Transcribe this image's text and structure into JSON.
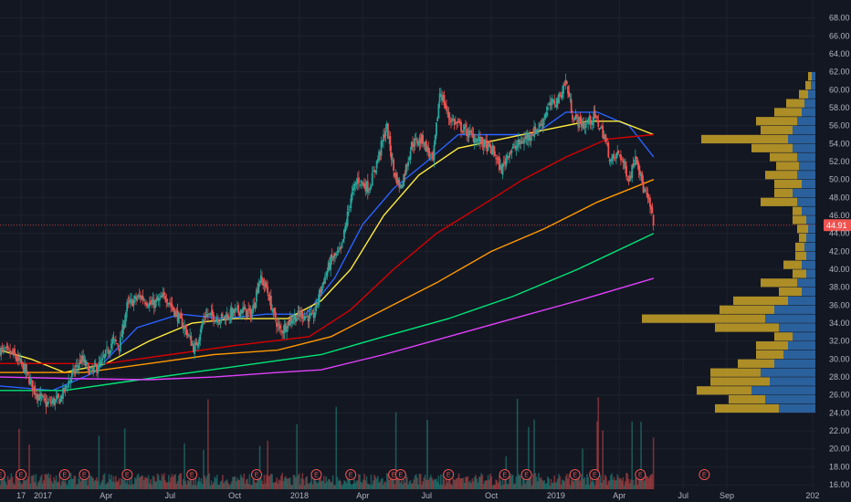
{
  "chart_data": {
    "type": "candlestick",
    "theme": {
      "background": "#131722",
      "grid": "#1e222d",
      "axis_text": "#b2b5be",
      "up": "#26a69a",
      "down": "#ef5350",
      "price_line": "#ef5350"
    },
    "y_axis": {
      "min": 15.5,
      "max": 70,
      "ticks": [
        "16.00",
        "18.00",
        "20.00",
        "22.00",
        "24.00",
        "26.00",
        "28.00",
        "30.00",
        "32.00",
        "34.00",
        "36.00",
        "38.00",
        "40.00",
        "42.00",
        "44.00",
        "46.00",
        "48.00",
        "50.00",
        "52.00",
        "54.00",
        "56.00",
        "58.00",
        "60.00",
        "62.00",
        "64.00",
        "66.00",
        "68.00"
      ]
    },
    "x_axis": {
      "start": "2016-11-01",
      "end": "2020-01-05",
      "ticks": [
        {
          "date": "2016-12-01",
          "label": "17"
        },
        {
          "date": "2017-01-01",
          "label": "2017"
        },
        {
          "date": "2017-04-01",
          "label": "Apr"
        },
        {
          "date": "2017-07-01",
          "label": "Jul"
        },
        {
          "date": "2017-10-01",
          "label": "Oct"
        },
        {
          "date": "2018-01-01",
          "label": "2018"
        },
        {
          "date": "2018-04-01",
          "label": "Apr"
        },
        {
          "date": "2018-07-01",
          "label": "Jul"
        },
        {
          "date": "2018-10-01",
          "label": "Oct"
        },
        {
          "date": "2019-01-01",
          "label": "2019"
        },
        {
          "date": "2019-04-01",
          "label": "Apr"
        },
        {
          "date": "2019-07-01",
          "label": "Jul"
        },
        {
          "date": "2019-09-01",
          "label": "Sep"
        },
        {
          "date": "2020-01-01",
          "label": "202"
        }
      ]
    },
    "last_price": {
      "value": 44.91,
      "label": "44.91"
    },
    "price_path": [
      [
        "2016-11-01",
        31
      ],
      [
        "2016-11-20",
        30.5
      ],
      [
        "2016-12-05",
        29
      ],
      [
        "2016-12-20",
        26.5
      ],
      [
        "2017-01-05",
        25
      ],
      [
        "2017-01-25",
        25.5
      ],
      [
        "2017-02-10",
        28
      ],
      [
        "2017-02-25",
        30
      ],
      [
        "2017-03-10",
        28.5
      ],
      [
        "2017-03-25",
        29.5
      ],
      [
        "2017-04-10",
        32
      ],
      [
        "2017-04-20",
        31.5
      ],
      [
        "2017-05-01",
        36
      ],
      [
        "2017-05-20",
        37
      ],
      [
        "2017-06-05",
        36
      ],
      [
        "2017-06-25",
        37
      ],
      [
        "2017-07-10",
        35
      ],
      [
        "2017-07-25",
        33
      ],
      [
        "2017-08-05",
        31
      ],
      [
        "2017-08-20",
        35
      ],
      [
        "2017-09-10",
        34.5
      ],
      [
        "2017-09-25",
        35
      ],
      [
        "2017-10-10",
        35.5
      ],
      [
        "2017-10-25",
        35
      ],
      [
        "2017-11-05",
        39
      ],
      [
        "2017-11-15",
        38
      ],
      [
        "2017-11-25",
        35
      ],
      [
        "2017-12-05",
        33
      ],
      [
        "2017-12-20",
        34.5
      ],
      [
        "2018-01-05",
        35
      ],
      [
        "2018-01-20",
        34.5
      ],
      [
        "2018-02-01",
        38
      ],
      [
        "2018-02-15",
        41
      ],
      [
        "2018-03-01",
        42
      ],
      [
        "2018-03-15",
        48
      ],
      [
        "2018-03-25",
        50
      ],
      [
        "2018-04-10",
        49
      ],
      [
        "2018-04-25",
        53
      ],
      [
        "2018-05-05",
        56
      ],
      [
        "2018-05-15",
        51
      ],
      [
        "2018-05-25",
        49
      ],
      [
        "2018-06-10",
        54
      ],
      [
        "2018-06-25",
        54.5
      ],
      [
        "2018-07-10",
        52
      ],
      [
        "2018-07-20",
        60
      ],
      [
        "2018-08-01",
        57
      ],
      [
        "2018-08-15",
        56
      ],
      [
        "2018-09-01",
        55
      ],
      [
        "2018-09-20",
        54
      ],
      [
        "2018-10-05",
        53
      ],
      [
        "2018-10-15",
        51
      ],
      [
        "2018-10-25",
        53
      ],
      [
        "2018-11-10",
        54
      ],
      [
        "2018-11-25",
        55
      ],
      [
        "2018-12-10",
        56
      ],
      [
        "2018-12-20",
        58
      ],
      [
        "2019-01-05",
        59
      ],
      [
        "2019-01-15",
        61
      ],
      [
        "2019-01-25",
        57
      ],
      [
        "2019-02-10",
        56
      ],
      [
        "2019-02-25",
        57
      ],
      [
        "2019-03-10",
        55
      ],
      [
        "2019-03-20",
        52
      ],
      [
        "2019-04-01",
        53
      ],
      [
        "2019-04-15",
        50
      ],
      [
        "2019-04-25",
        53
      ],
      [
        "2019-05-05",
        49
      ],
      [
        "2019-05-15",
        47
      ],
      [
        "2019-05-20",
        44.91
      ]
    ],
    "moving_averages": [
      {
        "color": "#2962ff",
        "points": [
          [
            "2016-11-01",
            27
          ],
          [
            "2017-01-15",
            26.5
          ],
          [
            "2017-03-15",
            28.5
          ],
          [
            "2017-05-15",
            33.5
          ],
          [
            "2017-07-15",
            35
          ],
          [
            "2017-09-15",
            34.5
          ],
          [
            "2017-11-15",
            35
          ],
          [
            "2018-01-10",
            35
          ],
          [
            "2018-02-20",
            39
          ],
          [
            "2018-04-01",
            45
          ],
          [
            "2018-05-15",
            49
          ],
          [
            "2018-07-01",
            52
          ],
          [
            "2018-08-15",
            55
          ],
          [
            "2018-10-01",
            55
          ],
          [
            "2018-12-01",
            55
          ],
          [
            "2019-01-15",
            57.5
          ],
          [
            "2019-03-01",
            57.5
          ],
          [
            "2019-04-15",
            56
          ],
          [
            "2019-05-20",
            52.5
          ]
        ]
      },
      {
        "color": "#ffeb3b",
        "points": [
          [
            "2016-11-01",
            31
          ],
          [
            "2016-12-15",
            30
          ],
          [
            "2017-02-01",
            28.5
          ],
          [
            "2017-04-01",
            29.5
          ],
          [
            "2017-06-01",
            32
          ],
          [
            "2017-08-01",
            34
          ],
          [
            "2017-10-01",
            34.5
          ],
          [
            "2017-12-15",
            34.5
          ],
          [
            "2018-02-01",
            36.5
          ],
          [
            "2018-03-15",
            40
          ],
          [
            "2018-05-01",
            46
          ],
          [
            "2018-06-20",
            50.5
          ],
          [
            "2018-08-15",
            53.5
          ],
          [
            "2018-10-15",
            54.5
          ],
          [
            "2018-12-15",
            55.5
          ],
          [
            "2019-02-15",
            56.5
          ],
          [
            "2019-04-01",
            56.5
          ],
          [
            "2019-05-20",
            55
          ]
        ]
      },
      {
        "color": "#d50000",
        "points": [
          [
            "2016-11-01",
            29.5
          ],
          [
            "2017-01-15",
            29.5
          ],
          [
            "2017-04-01",
            29.5
          ],
          [
            "2017-07-01",
            30.5
          ],
          [
            "2017-10-01",
            31.5
          ],
          [
            "2018-01-15",
            32.5
          ],
          [
            "2018-03-15",
            35.5
          ],
          [
            "2018-05-15",
            40
          ],
          [
            "2018-07-15",
            44
          ],
          [
            "2018-09-15",
            47
          ],
          [
            "2018-11-15",
            50
          ],
          [
            "2019-01-15",
            52.5
          ],
          [
            "2019-03-15",
            54.5
          ],
          [
            "2019-05-20",
            55
          ]
        ]
      },
      {
        "color": "#ff9800",
        "points": [
          [
            "2016-11-01",
            28.5
          ],
          [
            "2017-03-01",
            28.5
          ],
          [
            "2017-06-01",
            29.5
          ],
          [
            "2017-09-01",
            30.5
          ],
          [
            "2017-12-01",
            31
          ],
          [
            "2018-02-15",
            32.5
          ],
          [
            "2018-05-01",
            35.5
          ],
          [
            "2018-07-15",
            38.5
          ],
          [
            "2018-10-01",
            42
          ],
          [
            "2018-12-15",
            44.5
          ],
          [
            "2019-03-01",
            47.5
          ],
          [
            "2019-05-20",
            50
          ]
        ]
      },
      {
        "color": "#00e676",
        "points": [
          [
            "2016-11-01",
            26.5
          ],
          [
            "2017-02-01",
            26.5
          ],
          [
            "2017-05-01",
            27.5
          ],
          [
            "2017-08-01",
            28.5
          ],
          [
            "2017-11-01",
            29.5
          ],
          [
            "2018-02-01",
            30.5
          ],
          [
            "2018-05-01",
            32.5
          ],
          [
            "2018-08-01",
            34.5
          ],
          [
            "2018-11-01",
            37
          ],
          [
            "2019-02-01",
            40
          ],
          [
            "2019-05-20",
            44
          ]
        ]
      },
      {
        "color": "#e040fb",
        "points": [
          [
            "2016-11-01",
            28
          ],
          [
            "2017-03-01",
            27.8
          ],
          [
            "2017-06-01",
            27.7
          ],
          [
            "2017-09-01",
            28
          ],
          [
            "2017-12-01",
            28.5
          ],
          [
            "2018-02-01",
            28.8
          ],
          [
            "2018-05-01",
            30.5
          ],
          [
            "2018-08-01",
            32.5
          ],
          [
            "2018-11-01",
            34.5
          ],
          [
            "2019-02-01",
            36.5
          ],
          [
            "2019-05-20",
            39
          ]
        ]
      }
    ],
    "earnings_dates": [
      "2016-11-01",
      "2016-12-01",
      "2017-02-01",
      "2017-03-01",
      "2017-05-01",
      "2017-08-01",
      "2017-11-01",
      "2018-01-25",
      "2018-03-15",
      "2018-05-15",
      "2018-05-25",
      "2018-08-01",
      "2018-10-20",
      "2018-11-20",
      "2019-01-28",
      "2019-02-25",
      "2019-05-01",
      "2019-07-31"
    ],
    "earnings_label": "E",
    "volume_profile": {
      "up_color": "#2f6fb3",
      "down_color": "#c9a227",
      "rows": [
        {
          "price": 24.5,
          "up": 40,
          "down": 70
        },
        {
          "price": 25.5,
          "up": 55,
          "down": 40
        },
        {
          "price": 26.5,
          "up": 70,
          "down": 60
        },
        {
          "price": 27.5,
          "up": 50,
          "down": 65
        },
        {
          "price": 28.5,
          "up": 60,
          "down": 55
        },
        {
          "price": 29.5,
          "up": 45,
          "down": 40
        },
        {
          "price": 30.5,
          "up": 35,
          "down": 30
        },
        {
          "price": 31.5,
          "up": 30,
          "down": 35
        },
        {
          "price": 32.5,
          "up": 25,
          "down": 20
        },
        {
          "price": 33.5,
          "up": 40,
          "down": 70
        },
        {
          "price": 34.5,
          "up": 55,
          "down": 135
        },
        {
          "price": 35.5,
          "up": 45,
          "down": 60
        },
        {
          "price": 36.5,
          "up": 30,
          "down": 60
        },
        {
          "price": 37.5,
          "up": 15,
          "down": 25
        },
        {
          "price": 38.5,
          "up": 20,
          "down": 40
        },
        {
          "price": 39.5,
          "up": 10,
          "down": 15
        },
        {
          "price": 40.5,
          "up": 15,
          "down": 20
        },
        {
          "price": 41.5,
          "up": 10,
          "down": 12
        },
        {
          "price": 42.5,
          "up": 12,
          "down": 10
        },
        {
          "price": 43.5,
          "up": 10,
          "down": 8
        },
        {
          "price": 44.5,
          "up": 8,
          "down": 12
        },
        {
          "price": 45.5,
          "up": 10,
          "down": 15
        },
        {
          "price": 46.5,
          "up": 15,
          "down": 10
        },
        {
          "price": 47.5,
          "up": 20,
          "down": 40
        },
        {
          "price": 48.5,
          "up": 25,
          "down": 20
        },
        {
          "price": 49.5,
          "up": 15,
          "down": 30
        },
        {
          "price": 50.5,
          "up": 20,
          "down": 35
        },
        {
          "price": 51.5,
          "up": 18,
          "down": 25
        },
        {
          "price": 52.5,
          "up": 20,
          "down": 30
        },
        {
          "price": 53.5,
          "up": 25,
          "down": 45
        },
        {
          "price": 54.5,
          "up": 30,
          "down": 95
        },
        {
          "price": 55.5,
          "up": 25,
          "down": 35
        },
        {
          "price": 56.5,
          "up": 20,
          "down": 45
        },
        {
          "price": 57.5,
          "up": 15,
          "down": 30
        },
        {
          "price": 58.5,
          "up": 12,
          "down": 20
        },
        {
          "price": 59.5,
          "up": 8,
          "down": 10
        },
        {
          "price": 60.5,
          "up": 5,
          "down": 6
        },
        {
          "price": 61.5,
          "up": 4,
          "down": 4
        }
      ]
    }
  }
}
